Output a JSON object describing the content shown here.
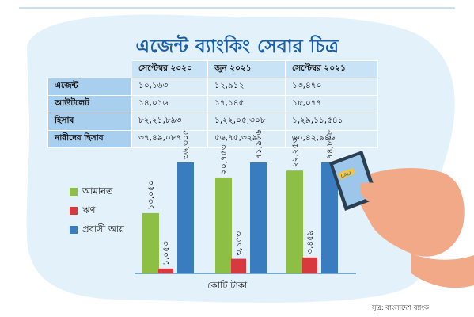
{
  "title": "এজেন্ট ব্যাংকিং সেবার চিত্র",
  "table": {
    "headers": [
      "",
      "সেপ্টেম্বর ২০২০",
      "জুন ২০২১",
      "সেপ্টেম্বর ২০২১"
    ],
    "rows": [
      {
        "label": "এজেন্ট",
        "values": [
          "১০,১৬৩",
          "১২,৯১২",
          "১৩,৪৭০"
        ]
      },
      {
        "label": "আউটলেট",
        "values": [
          "১৪,০১৬",
          "১৭,১৪৫",
          "১৮,০৭৭"
        ]
      },
      {
        "label": "হিসাব",
        "values": [
          "৮২,২১,৮৯৩",
          "১,২২,০৫,৩০৮",
          "১,২৯,১১,৫৪১"
        ]
      },
      {
        "label": "নারীদের হিসাব",
        "values": [
          "৩৭,৪৯,০৮৭",
          "৫৬,৭৫,৩২৯",
          "৬০,৪২,৯৪৬"
        ]
      }
    ]
  },
  "legend": [
    {
      "label": "আমানত",
      "color": "#8dbf45"
    },
    {
      "label": "ঋণ",
      "color": "#d8393e"
    },
    {
      "label": "প্রবাসী আয়",
      "color": "#3a7cc0"
    }
  ],
  "unit_label": "কোটি টাকা",
  "source": "সূত্র: বাংলাদেশ ব্যাংক",
  "colors": {
    "background_shape": "#e3f1fb",
    "title": "#1a5fa8",
    "axis": "#2f7fc1"
  },
  "illustration": {
    "phone_screen_text": "CALL"
  },
  "chart_data": {
    "type": "bar",
    "categories": [
      "সেপ্টেম্বর ২০২০",
      "জুন ২০২১",
      "সেপ্টেম্বর ২০২১"
    ],
    "series": [
      {
        "name": "আমানত",
        "values": [
          13050,
          20753,
          22253
        ],
        "labels": [
          "১৩,০৫০",
          "২০,৭৫৩",
          "২২,২৫৩"
        ]
      },
      {
        "name": "ঋণ",
        "values": [
          1053,
          3153,
          3459
        ],
        "labels": [
          "১,০৫৩",
          "৩,১৫৩",
          "৩,৪৫৯"
        ]
      },
      {
        "name": "প্রবাসী আয়",
        "values": [
          36305,
          71986,
          74868
        ],
        "labels": [
          "৩৬,৩০৫",
          "৭১,৯৮৬",
          "৭৪,৮৬৮"
        ]
      }
    ],
    "ylim": [
      0,
      24000
    ],
    "grid": false,
    "legend_position": "left"
  }
}
